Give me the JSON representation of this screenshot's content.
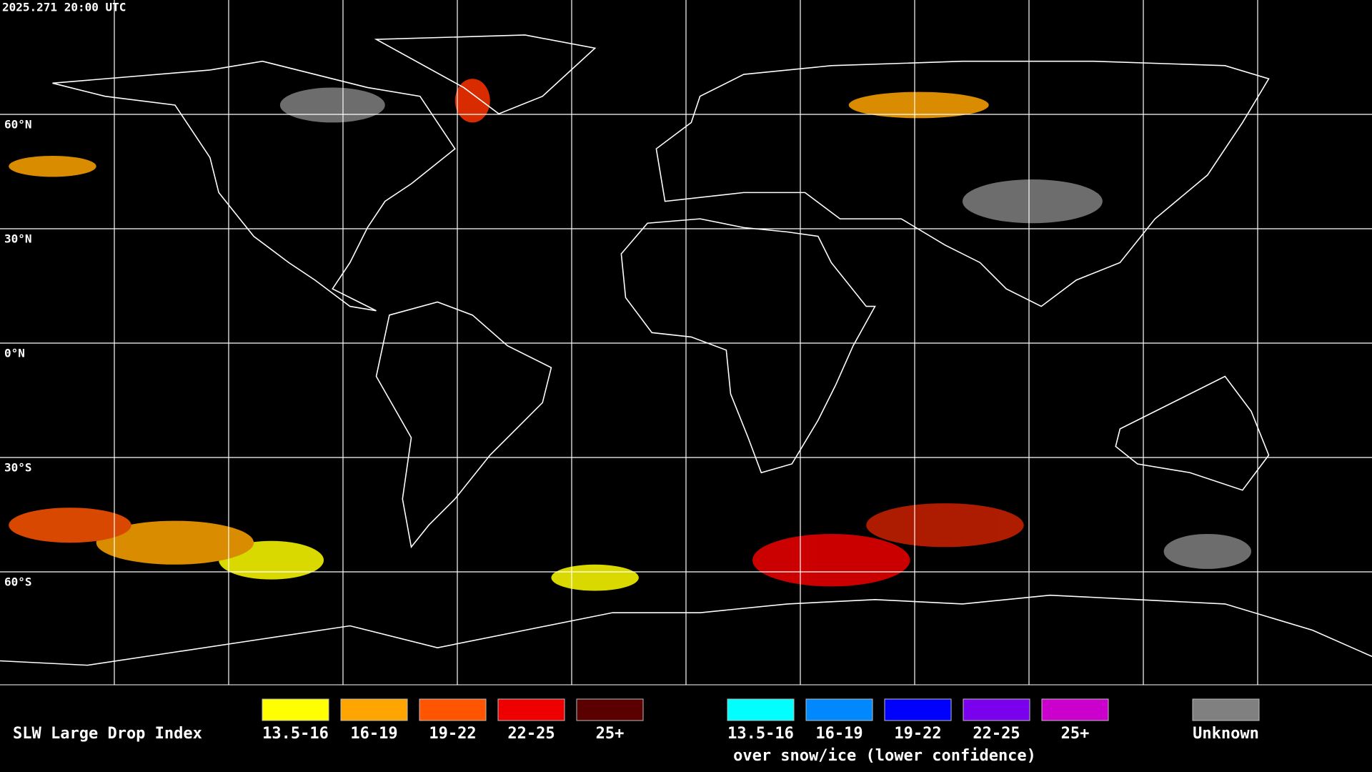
{
  "header": {
    "timestamp": "2025.271 20:00 UTC"
  },
  "latitude_labels": [
    "60°N",
    "30°N",
    "0°N",
    "30°S",
    "60°S"
  ],
  "legend": {
    "title": "SLW Large Drop Index",
    "groups": [
      {
        "items": [
          {
            "label": "13.5-16",
            "color": "#ffff00"
          },
          {
            "label": "16-19",
            "color": "#ffa500"
          },
          {
            "label": "19-22",
            "color": "#ff5500"
          },
          {
            "label": "22-25",
            "color": "#ee0000"
          },
          {
            "label": "25+",
            "color": "#5a0000"
          }
        ]
      },
      {
        "items": [
          {
            "label": "13.5-16",
            "color": "#00ffff"
          },
          {
            "label": "16-19",
            "color": "#0088ff"
          },
          {
            "label": "19-22",
            "color": "#0000ff"
          },
          {
            "label": "22-25",
            "color": "#7a00ee"
          },
          {
            "label": "25+",
            "color": "#cc00cc"
          }
        ],
        "caption": "over snow/ice (lower confidence)"
      }
    ],
    "unknown": {
      "label": "Unknown",
      "color": "#808080"
    }
  }
}
